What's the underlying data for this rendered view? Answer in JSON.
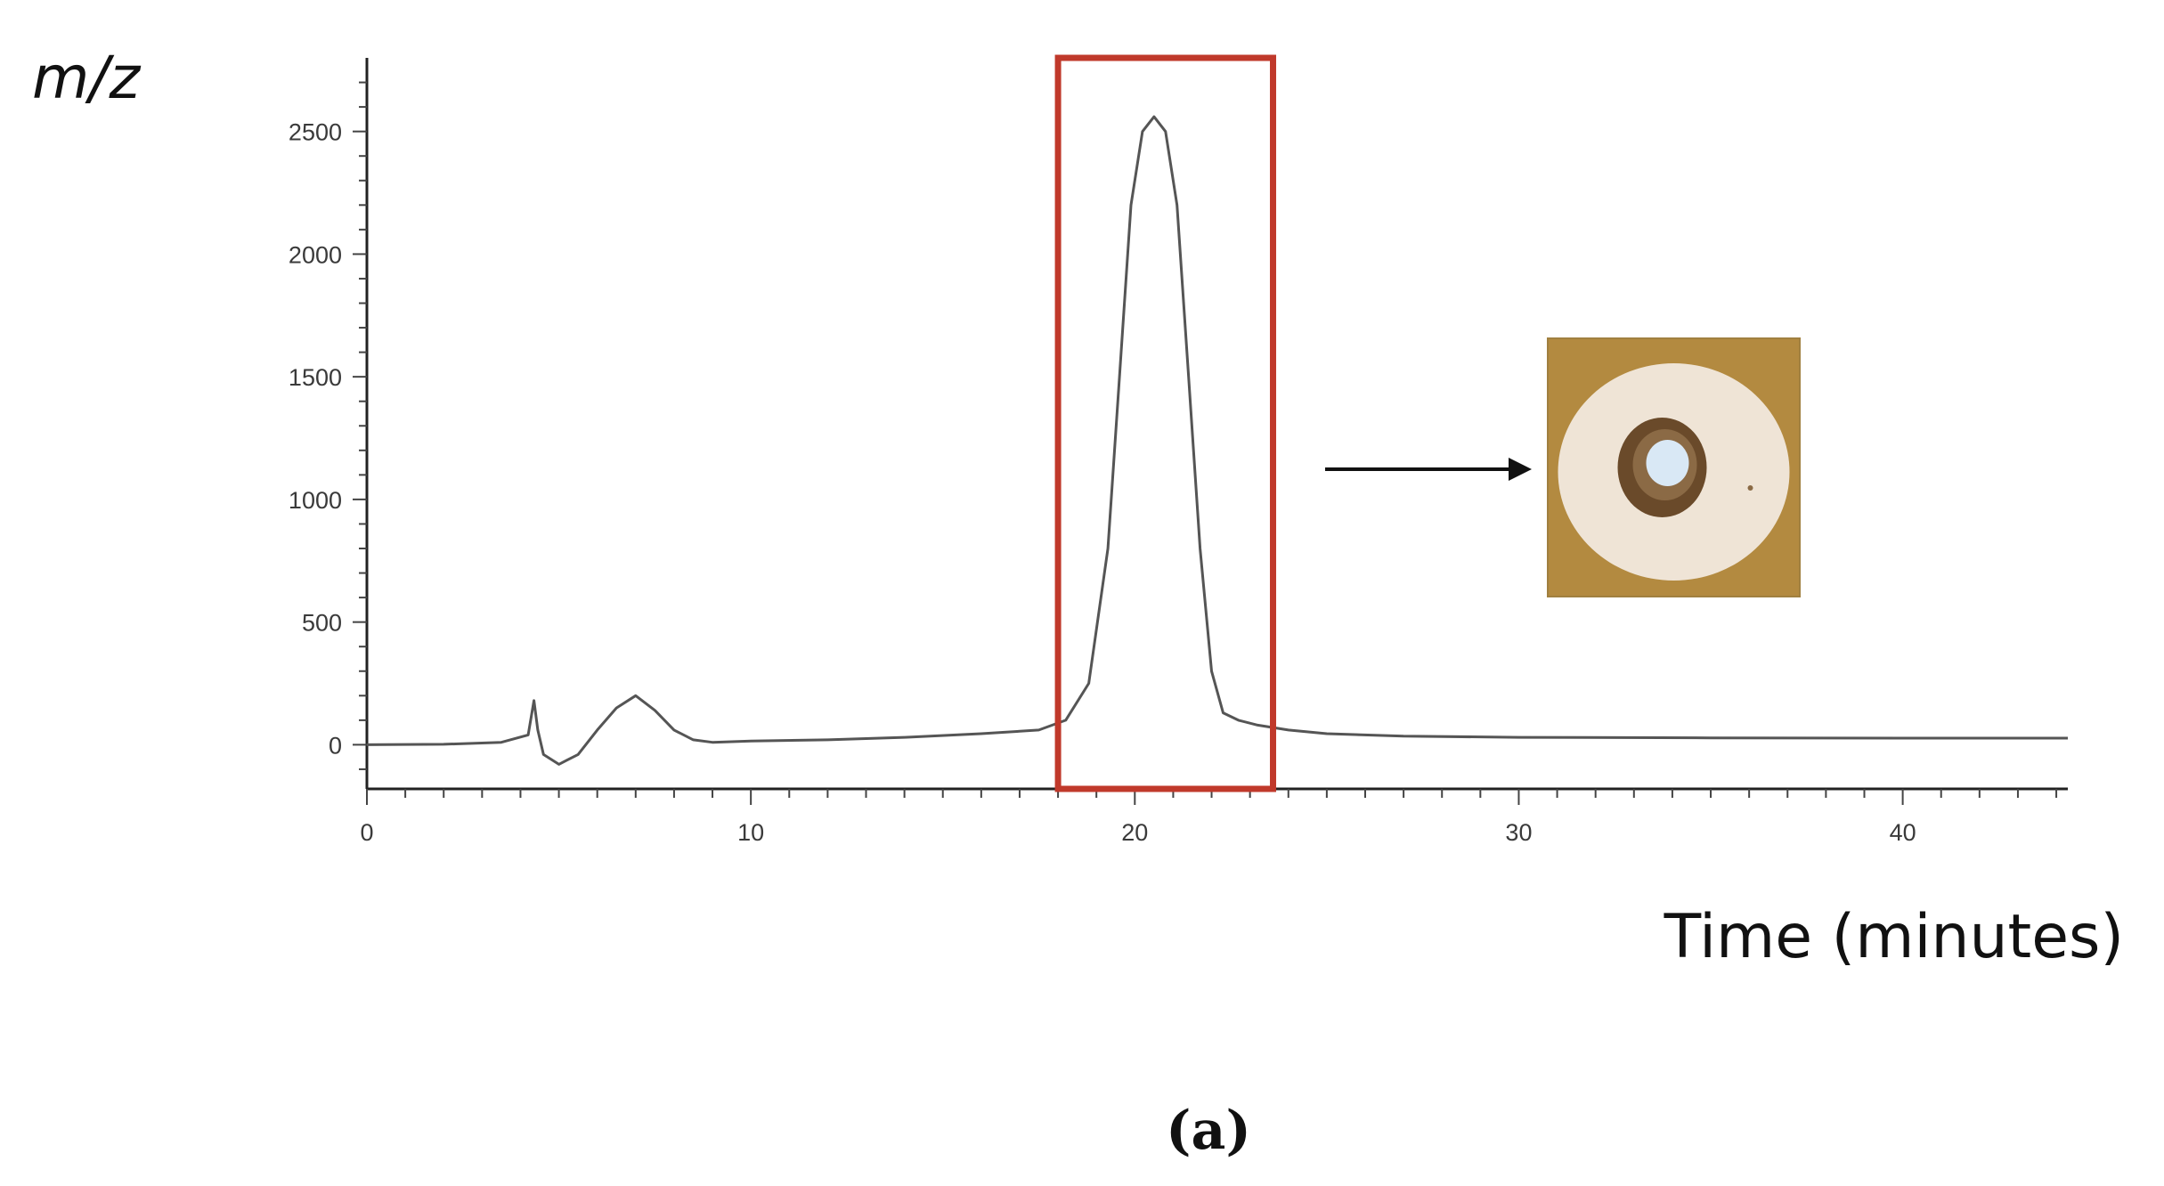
{
  "chart_data": {
    "type": "line",
    "title": "",
    "ylabel": "m/z",
    "xlabel": "Time (minutes)",
    "panel_label": "(a)",
    "xlim": [
      0,
      44.3
    ],
    "ylim": [
      -180,
      2800
    ],
    "x_ticks": [
      0,
      10,
      20,
      30,
      40
    ],
    "y_ticks": [
      0,
      500,
      1000,
      1500,
      2000,
      2500
    ],
    "series": [
      {
        "x": [
          0,
          2,
          3.5,
          4.2,
          4.35,
          4.45,
          4.6,
          5.0,
          5.5,
          6.0,
          6.5,
          7.0,
          7.5,
          8.0,
          8.5,
          9.0,
          10,
          12,
          14,
          16,
          17.5,
          18.2,
          18.8,
          19.3,
          19.6,
          19.9,
          20.2,
          20.5,
          20.8,
          21.1,
          21.4,
          21.7,
          22.0,
          22.3,
          22.7,
          23.2,
          24,
          25,
          27,
          30,
          35,
          40,
          44.3
        ],
        "y": [
          0,
          2,
          10,
          40,
          180,
          60,
          -40,
          -80,
          -40,
          60,
          150,
          200,
          140,
          60,
          20,
          10,
          15,
          20,
          30,
          45,
          60,
          100,
          250,
          800,
          1500,
          2200,
          2500,
          2560,
          2500,
          2200,
          1500,
          800,
          300,
          130,
          100,
          80,
          60,
          45,
          35,
          30,
          28,
          27,
          27
        ]
      }
    ],
    "highlight_region": {
      "x": [
        18,
        23.6
      ],
      "y": [
        -180,
        2800
      ],
      "color": "#c0392b"
    },
    "line_color": "#555555",
    "inset": {
      "description": "photo",
      "background_color": "#b38a40",
      "disc_color": "#efe4d6",
      "hole_color": "#6a4a2a",
      "center_color": "#d9e8f5"
    }
  }
}
